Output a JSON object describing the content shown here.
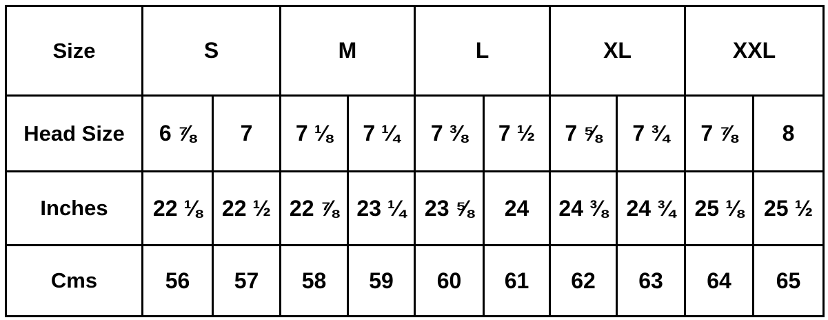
{
  "table": {
    "header": {
      "label": "Size",
      "groups": [
        "S",
        "M",
        "L",
        "XL",
        "XXL"
      ]
    },
    "rows": [
      {
        "label": "Head Size",
        "cells": [
          "6 ⅞",
          "7",
          "7 ⅛",
          "7 ¼",
          "7 ⅜",
          "7 ½",
          "7 ⅝",
          "7 ¾",
          "7 ⅞",
          "8"
        ]
      },
      {
        "label": "Inches",
        "cells": [
          "22 ⅛",
          "22 ½",
          "22 ⅞",
          "23 ¼",
          "23 ⅝",
          "24",
          "24 ⅜",
          "24 ¾",
          "25 ⅛",
          "25 ½"
        ]
      },
      {
        "label": "Cms",
        "cells": [
          "56",
          "57",
          "58",
          "59",
          "60",
          "61",
          "62",
          "63",
          "64",
          "65"
        ]
      }
    ]
  }
}
